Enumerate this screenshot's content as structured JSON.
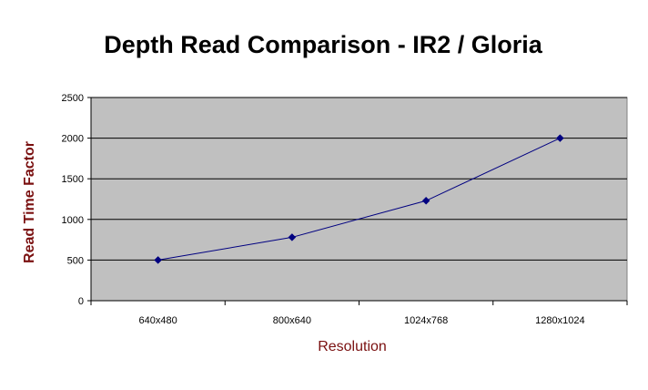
{
  "chart_data": {
    "type": "line",
    "title": "Depth Read Comparison - IR2 / Gloria",
    "xlabel": "Resolution",
    "ylabel": "Read Time Factor",
    "categories": [
      "640x480",
      "800x640",
      "1024x768",
      "1280x1024"
    ],
    "series": [
      {
        "values": [
          500,
          780,
          1230,
          2000
        ]
      }
    ],
    "ylim": [
      0,
      2500
    ],
    "yticks": [
      0,
      500,
      1000,
      1500,
      2000,
      2500
    ],
    "grid": true,
    "legend": "none",
    "colors": {
      "plot_background": "#c0c0c0",
      "gridline": "#000000",
      "series_line": "#000080",
      "axis_title": "#7a1010"
    }
  }
}
